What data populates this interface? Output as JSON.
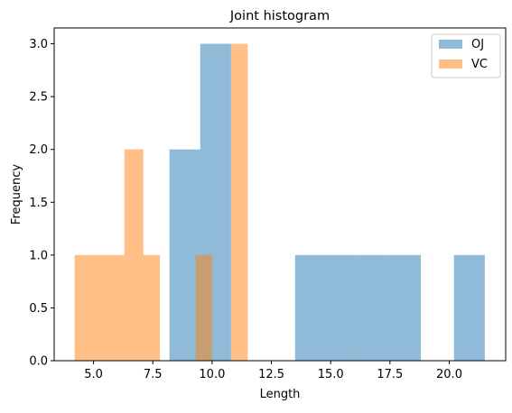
{
  "chart_data": {
    "type": "bar",
    "title": "Joint histogram",
    "xlabel": "Length",
    "ylabel": "Frequency",
    "xlim": [
      3.34,
      22.38
    ],
    "ylim": [
      0,
      3.15
    ],
    "x_ticks": [
      5.0,
      7.5,
      10.0,
      12.5,
      15.0,
      17.5,
      20.0
    ],
    "x_tick_labels": [
      "5.0",
      "7.5",
      "10.0",
      "12.5",
      "15.0",
      "17.5",
      "20.0"
    ],
    "y_ticks": [
      0.0,
      0.5,
      1.0,
      1.5,
      2.0,
      2.5,
      3.0
    ],
    "y_tick_labels": [
      "0.0",
      "0.5",
      "1.0",
      "1.5",
      "2.0",
      "2.5",
      "3.0"
    ],
    "grid": false,
    "legend_position": "top-right",
    "series": [
      {
        "name": "OJ",
        "color": "#1f77b4",
        "opacity": 0.5,
        "bins": [
          {
            "x0": 8.2,
            "x1": 9.5,
            "count": 2
          },
          {
            "x0": 9.5,
            "x1": 10.8,
            "count": 3
          },
          {
            "x0": 13.5,
            "x1": 14.8,
            "count": 1
          },
          {
            "x0": 14.8,
            "x1": 16.2,
            "count": 1
          },
          {
            "x0": 16.2,
            "x1": 17.5,
            "count": 1
          },
          {
            "x0": 17.5,
            "x1": 18.8,
            "count": 1
          },
          {
            "x0": 20.2,
            "x1": 21.5,
            "count": 1
          }
        ]
      },
      {
        "name": "VC",
        "color": "#ff7f0e",
        "opacity": 0.5,
        "bins": [
          {
            "x0": 4.2,
            "x1": 4.9,
            "count": 1
          },
          {
            "x0": 4.9,
            "x1": 5.6,
            "count": 1
          },
          {
            "x0": 5.6,
            "x1": 6.3,
            "count": 1
          },
          {
            "x0": 6.3,
            "x1": 7.1,
            "count": 2
          },
          {
            "x0": 7.1,
            "x1": 7.8,
            "count": 1
          },
          {
            "x0": 9.3,
            "x1": 10.0,
            "count": 1
          },
          {
            "x0": 10.8,
            "x1": 11.5,
            "count": 3
          }
        ]
      }
    ]
  }
}
